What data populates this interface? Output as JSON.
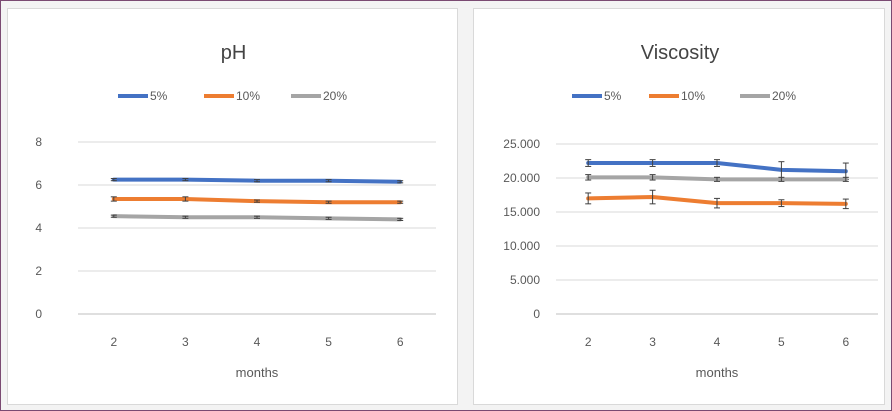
{
  "chart_data": [
    {
      "type": "line",
      "title": "pH",
      "xlabel": "months",
      "ylabel": "",
      "categories": [
        "2",
        "3",
        "4",
        "5",
        "6"
      ],
      "ylim": [
        0,
        8
      ],
      "yticks": [
        "0",
        "2",
        "4",
        "6",
        "8"
      ],
      "grid": true,
      "legend_position": "top",
      "error_bars": true,
      "series": [
        {
          "name": "5%",
          "color": "#4472c4",
          "values": [
            6.25,
            6.25,
            6.2,
            6.2,
            6.15
          ],
          "errors": [
            0.05,
            0.05,
            0.05,
            0.05,
            0.05
          ]
        },
        {
          "name": "10%",
          "color": "#ed7d31",
          "values": [
            5.35,
            5.35,
            5.25,
            5.2,
            5.2
          ],
          "errors": [
            0.1,
            0.1,
            0.05,
            0.05,
            0.05
          ]
        },
        {
          "name": "20%",
          "color": "#a5a5a5",
          "values": [
            4.55,
            4.5,
            4.5,
            4.45,
            4.4
          ],
          "errors": [
            0.05,
            0.05,
            0.05,
            0.05,
            0.05
          ]
        }
      ]
    },
    {
      "type": "line",
      "title": "Viscosity",
      "xlabel": "months",
      "ylabel": "",
      "categories": [
        "2",
        "3",
        "4",
        "5",
        "6"
      ],
      "ylim": [
        0,
        25000
      ],
      "yticks": [
        "0",
        "5.000",
        "10.000",
        "15.000",
        "20.000",
        "25.000"
      ],
      "grid": true,
      "legend_position": "top",
      "error_bars": true,
      "series": [
        {
          "name": "5%",
          "color": "#4472c4",
          "values": [
            22200,
            22200,
            22200,
            21200,
            21000
          ],
          "errors": [
            500,
            500,
            500,
            1200,
            1200
          ]
        },
        {
          "name": "10%",
          "color": "#ed7d31",
          "values": [
            17000,
            17200,
            16300,
            16300,
            16200
          ],
          "errors": [
            800,
            1000,
            700,
            500,
            700
          ]
        },
        {
          "name": "20%",
          "color": "#a5a5a5",
          "values": [
            20100,
            20100,
            19800,
            19800,
            19800
          ],
          "errors": [
            400,
            400,
            300,
            300,
            300
          ]
        }
      ]
    }
  ]
}
